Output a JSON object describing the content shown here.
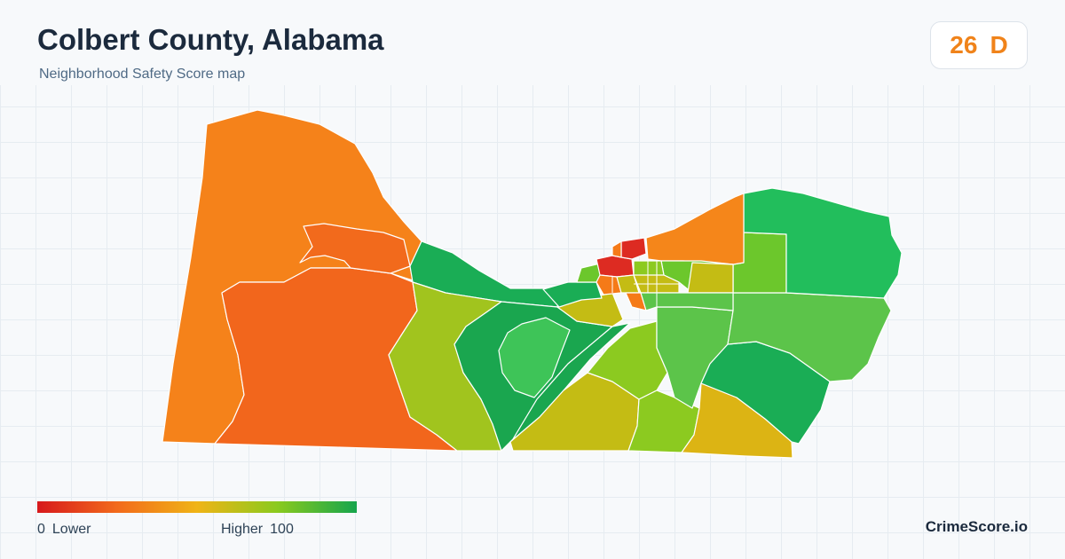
{
  "header": {
    "title": "Colbert County, Alabama",
    "subtitle": "Neighborhood Safety Score map"
  },
  "score": {
    "value": "26",
    "grade": "D",
    "color": "#f0831a"
  },
  "legend": {
    "min_value": "0",
    "min_label": "Lower",
    "max_label": "Higher",
    "max_value": "100",
    "colors": [
      "#d7191c",
      "#f26a1b",
      "#f0b416",
      "#8bca1e",
      "#16a54c"
    ]
  },
  "map": {
    "region_colors": {
      "west": "#f5821a",
      "southwest": "#f2661c",
      "north_strip": "#f26a1c",
      "northeast_river": "#f5861a",
      "center_west_green": "#1aad55",
      "center_yellow_green": "#a1c41e",
      "center_green": "#1aa64f",
      "center_light_green": "#3ec458",
      "center_yellow": "#c4bc14",
      "center_lime": "#8cca20",
      "east_green": "#5cc44a",
      "east_dark_green": "#1aad55",
      "east_lime": "#6cc72c",
      "east_top_green": "#22be5c",
      "south_yellow": "#dcb414",
      "downtown_red": "#dd2b22",
      "downtown_orange": "#f57a18"
    }
  },
  "brand": "CrimeScore.io"
}
